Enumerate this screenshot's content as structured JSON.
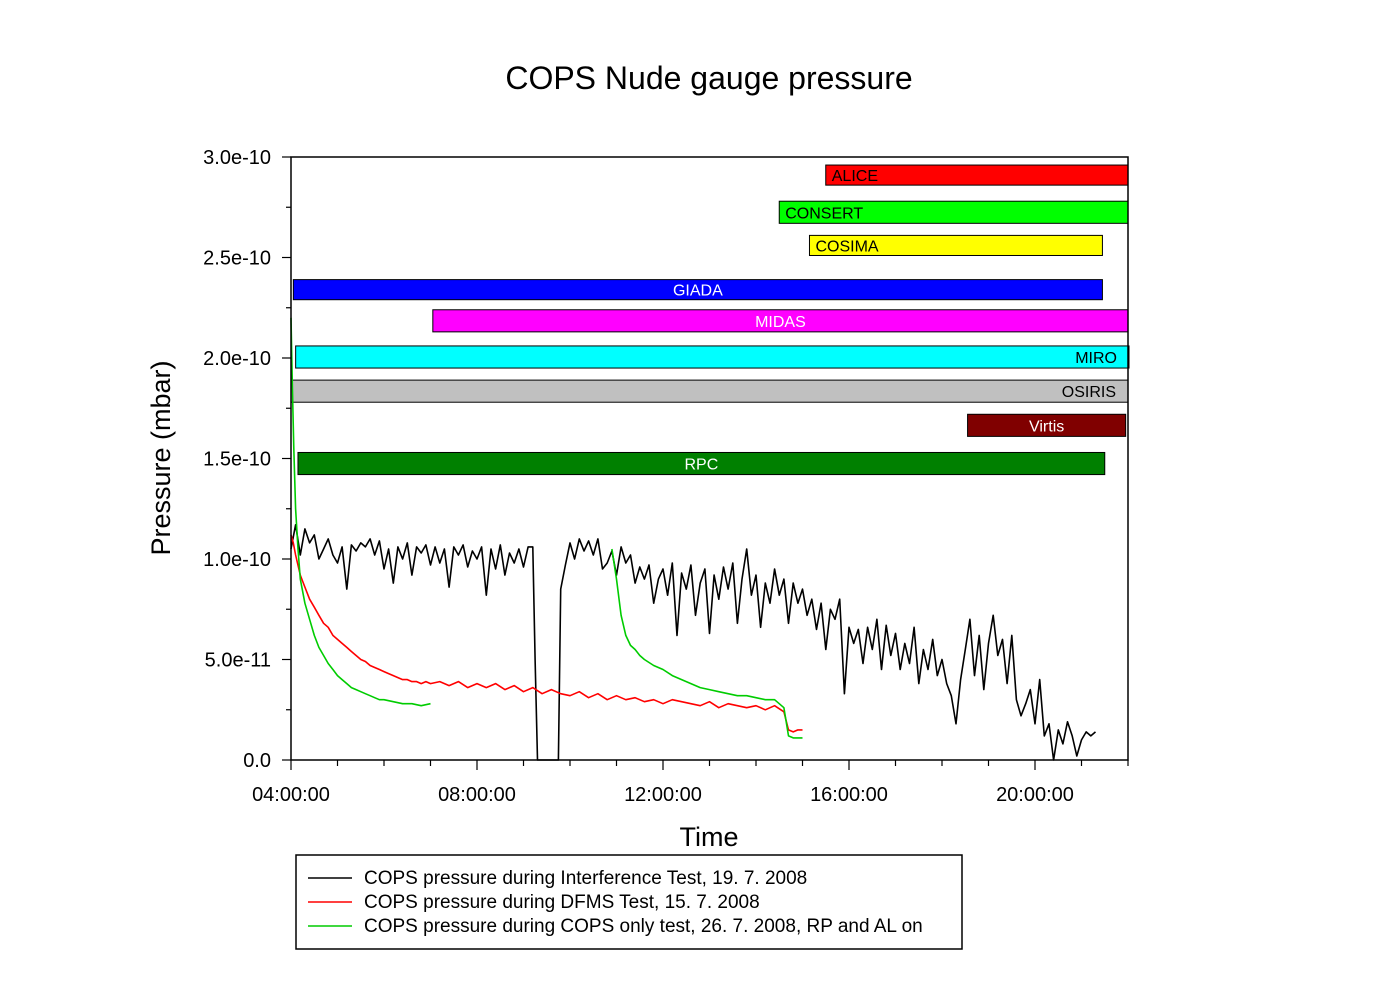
{
  "chart_data": {
    "type": "line",
    "title": "COPS Nude gauge pressure",
    "xlabel": "Time",
    "ylabel": "Pressure (mbar)",
    "x_unit": "hours",
    "xlim": [
      4.0,
      22.0
    ],
    "ylim": [
      0,
      3e-10
    ],
    "x_ticks": [
      {
        "value": 4,
        "label": "04:00:00"
      },
      {
        "value": 8,
        "label": "08:00:00"
      },
      {
        "value": 12,
        "label": "12:00:00"
      },
      {
        "value": 16,
        "label": "16:00:00"
      },
      {
        "value": 20,
        "label": "20:00:00"
      }
    ],
    "y_ticks": [
      {
        "value": 0,
        "label": "0.0"
      },
      {
        "value": 5e-11,
        "label": "5.0e-11"
      },
      {
        "value": 1e-10,
        "label": "1.0e-10"
      },
      {
        "value": 1.5e-10,
        "label": "1.5e-10"
      },
      {
        "value": 2e-10,
        "label": "2.0e-10"
      },
      {
        "value": 2.5e-10,
        "label": "2.5e-10"
      },
      {
        "value": 3e-10,
        "label": "3.0e-10"
      }
    ],
    "grid": false,
    "legend_position": "bottom",
    "instrument_bars": [
      {
        "name": "ALICE",
        "start": 15.5,
        "end": 22.0,
        "y_top": 2.96e-10,
        "y_bottom": 2.86e-10,
        "color": "#ff0000",
        "text_color": "#000000",
        "align": "start"
      },
      {
        "name": "CONSERT",
        "start": 14.5,
        "end": 22.0,
        "y_top": 2.78e-10,
        "y_bottom": 2.67e-10,
        "color": "#00ff00",
        "text_color": "#000000",
        "align": "start"
      },
      {
        "name": "COSIMA",
        "start": 15.15,
        "end": 21.45,
        "y_top": 2.61e-10,
        "y_bottom": 2.51e-10,
        "color": "#ffff00",
        "text_color": "#000000",
        "align": "start"
      },
      {
        "name": "GIADA",
        "start": 4.05,
        "end": 21.45,
        "y_top": 2.39e-10,
        "y_bottom": 2.29e-10,
        "color": "#0000ff",
        "text_color": "#ffffff",
        "align": "middle"
      },
      {
        "name": "MIDAS",
        "start": 7.05,
        "end": 22.0,
        "y_top": 2.24e-10,
        "y_bottom": 2.13e-10,
        "color": "#ff00ff",
        "text_color": "#ffffff",
        "align": "middle"
      },
      {
        "name": "MIRO",
        "start": 4.1,
        "end": 22.05,
        "y_top": 2.06e-10,
        "y_bottom": 1.95e-10,
        "color": "#00ffff",
        "text_color": "#000000",
        "align": "end"
      },
      {
        "name": "OSIRIS",
        "start": 4.0,
        "end": 22.0,
        "y_top": 1.89e-10,
        "y_bottom": 1.78e-10,
        "color": "#c0c0c0",
        "text_color": "#000000",
        "align": "end"
      },
      {
        "name": "Virtis",
        "start": 18.55,
        "end": 21.95,
        "y_top": 1.72e-10,
        "y_bottom": 1.61e-10,
        "color": "#800000",
        "text_color": "#ffffff",
        "align": "middle"
      },
      {
        "name": "RPC",
        "start": 4.15,
        "end": 21.5,
        "y_top": 1.53e-10,
        "y_bottom": 1.42e-10,
        "color": "#008000",
        "text_color": "#ffffff",
        "align": "middle"
      }
    ],
    "series": [
      {
        "name": "COPS pressure during Interference Test, 19. 7. 2008",
        "color": "#000000",
        "x": [
          4.0,
          4.1,
          4.2,
          4.3,
          4.4,
          4.5,
          4.6,
          4.7,
          4.8,
          4.9,
          5.0,
          5.1,
          5.2,
          5.3,
          5.4,
          5.5,
          5.6,
          5.7,
          5.8,
          5.9,
          6.0,
          6.1,
          6.2,
          6.3,
          6.4,
          6.5,
          6.6,
          6.7,
          6.8,
          6.9,
          7.0,
          7.1,
          7.2,
          7.3,
          7.4,
          7.5,
          7.6,
          7.7,
          7.8,
          7.9,
          8.0,
          8.1,
          8.2,
          8.3,
          8.4,
          8.5,
          8.6,
          8.7,
          8.8,
          8.9,
          9.0,
          9.1,
          9.2,
          9.25,
          9.3,
          9.75,
          9.8,
          9.9,
          10.0,
          10.1,
          10.2,
          10.3,
          10.4,
          10.5,
          10.6,
          10.7,
          10.8,
          10.9,
          11.0,
          11.1,
          11.2,
          11.3,
          11.4,
          11.5,
          11.6,
          11.7,
          11.8,
          11.9,
          12.0,
          12.1,
          12.2,
          12.3,
          12.4,
          12.5,
          12.6,
          12.7,
          12.8,
          12.9,
          13.0,
          13.1,
          13.2,
          13.3,
          13.4,
          13.5,
          13.6,
          13.7,
          13.8,
          13.9,
          14.0,
          14.1,
          14.2,
          14.3,
          14.4,
          14.5,
          14.6,
          14.7,
          14.8,
          14.9,
          15.0,
          15.1,
          15.2,
          15.3,
          15.4,
          15.5,
          15.6,
          15.7,
          15.8,
          15.9,
          16.0,
          16.1,
          16.2,
          16.3,
          16.4,
          16.5,
          16.6,
          16.7,
          16.8,
          16.9,
          17.0,
          17.1,
          17.2,
          17.3,
          17.4,
          17.5,
          17.6,
          17.7,
          17.8,
          17.9,
          18.0,
          18.1,
          18.2,
          18.3,
          18.4,
          18.5,
          18.6,
          18.7,
          18.8,
          18.9,
          19.0,
          19.1,
          19.2,
          19.3,
          19.4,
          19.5,
          19.6,
          19.7,
          19.8,
          19.9,
          20.0,
          20.1,
          20.2,
          20.3,
          20.4,
          20.5,
          20.6,
          20.7,
          20.8,
          20.9,
          21.0,
          21.1,
          21.2,
          21.3
        ],
        "y": [
          1.05e-10,
          1.17e-10,
          1.02e-10,
          1.15e-10,
          1.08e-10,
          1.12e-10,
          1e-10,
          1.05e-10,
          1.1e-10,
          1.02e-10,
          9.8e-11,
          1.06e-10,
          8.5e-11,
          1.07e-10,
          1.04e-10,
          1.08e-10,
          1.06e-10,
          1.1e-10,
          1.02e-10,
          1.09e-10,
          9.5e-11,
          1.05e-10,
          8.8e-11,
          1.06e-10,
          1e-10,
          1.08e-10,
          9.2e-11,
          1.06e-10,
          1.03e-10,
          1.07e-10,
          9.7e-11,
          1.06e-10,
          9.8e-11,
          1.05e-10,
          8.6e-11,
          1.06e-10,
          1.02e-10,
          1.07e-10,
          9.6e-11,
          1.04e-10,
          1e-10,
          1.06e-10,
          8.2e-11,
          1.05e-10,
          9.5e-11,
          1.07e-10,
          9.2e-11,
          1.03e-10,
          9.8e-11,
          1.05e-10,
          9.6e-11,
          1.06e-10,
          1.06e-10,
          5e-11,
          0.0,
          0.0,
          8.5e-11,
          9.7e-11,
          1.08e-10,
          1e-10,
          1.1e-10,
          1.04e-10,
          1.09e-10,
          1.02e-10,
          1.1e-10,
          9.5e-11,
          9.8e-11,
          1.04e-10,
          9.2e-11,
          1.06e-10,
          9.8e-11,
          1.02e-10,
          8.8e-11,
          9.6e-11,
          9e-11,
          9.7e-11,
          7.8e-11,
          9e-11,
          9.5e-11,
          8.2e-11,
          9.8e-11,
          6.2e-11,
          9.3e-11,
          8.5e-11,
          9.7e-11,
          7.2e-11,
          8.8e-11,
          9.5e-11,
          6.3e-11,
          9.2e-11,
          8e-11,
          9.6e-11,
          8.5e-11,
          9.8e-11,
          6.8e-11,
          9e-11,
          1.05e-10,
          8.2e-11,
          9.2e-11,
          6.6e-11,
          8.8e-11,
          7.8e-11,
          9.5e-11,
          8.2e-11,
          9e-11,
          6.8e-11,
          8.8e-11,
          7.8e-11,
          8.5e-11,
          7.2e-11,
          8e-11,
          6.5e-11,
          7.8e-11,
          5.5e-11,
          7.5e-11,
          7e-11,
          8e-11,
          3.3e-11,
          6.6e-11,
          5.8e-11,
          6.5e-11,
          4.8e-11,
          6.6e-11,
          5.5e-11,
          7e-11,
          4.5e-11,
          6.7e-11,
          5.2e-11,
          6.3e-11,
          4.5e-11,
          5.8e-11,
          4.8e-11,
          6.6e-11,
          3.8e-11,
          5.5e-11,
          4.5e-11,
          6e-11,
          4.2e-11,
          5e-11,
          3.8e-11,
          3.2e-11,
          1.8e-11,
          4e-11,
          5.5e-11,
          7e-11,
          4.2e-11,
          6.2e-11,
          3.5e-11,
          5.8e-11,
          7.2e-11,
          5.2e-11,
          6e-11,
          3.8e-11,
          6.2e-11,
          3e-11,
          2.2e-11,
          2.8e-11,
          3.5e-11,
          1.8e-11,
          4e-11,
          1.2e-11,
          1.8e-11,
          0.0,
          1.5e-11,
          8e-12,
          1.9e-11,
          1.2e-11,
          2e-12,
          1e-11,
          1.4e-11,
          1.2e-11,
          1.4e-11
        ]
      },
      {
        "name": "COPS pressure during DFMS Test, 15. 7. 2008",
        "color": "#ff0000",
        "x": [
          4.0,
          4.05,
          4.1,
          4.2,
          4.3,
          4.4,
          4.5,
          4.6,
          4.7,
          4.8,
          4.9,
          5.0,
          5.1,
          5.2,
          5.3,
          5.4,
          5.5,
          5.6,
          5.7,
          5.8,
          5.9,
          6.0,
          6.1,
          6.2,
          6.3,
          6.4,
          6.5,
          6.6,
          6.7,
          6.8,
          6.9,
          7.0,
          7.2,
          7.4,
          7.6,
          7.8,
          8.0,
          8.2,
          8.4,
          8.6,
          8.8,
          9.0,
          9.2,
          9.4,
          9.6,
          9.8,
          10.0,
          10.2,
          10.4,
          10.6,
          10.8,
          11.0,
          11.2,
          11.4,
          11.6,
          11.8,
          12.0,
          12.2,
          12.4,
          12.6,
          12.8,
          13.0,
          13.2,
          13.4,
          13.6,
          13.8,
          14.0,
          14.2,
          14.4,
          14.6,
          14.7,
          14.8,
          14.9,
          15.0
        ],
        "y": [
          1.12e-10,
          1.08e-10,
          1.02e-10,
          9.2e-11,
          8.6e-11,
          8e-11,
          7.6e-11,
          7.2e-11,
          6.8e-11,
          6.6e-11,
          6.2e-11,
          6e-11,
          5.8e-11,
          5.6e-11,
          5.4e-11,
          5.2e-11,
          5e-11,
          4.9e-11,
          4.7e-11,
          4.6e-11,
          4.5e-11,
          4.4e-11,
          4.3e-11,
          4.2e-11,
          4.1e-11,
          4e-11,
          4e-11,
          3.9e-11,
          3.9e-11,
          3.8e-11,
          3.9e-11,
          3.8e-11,
          3.9e-11,
          3.7e-11,
          3.9e-11,
          3.6e-11,
          3.8e-11,
          3.6e-11,
          3.8e-11,
          3.5e-11,
          3.7e-11,
          3.4e-11,
          3.6e-11,
          3.3e-11,
          3.5e-11,
          3.3e-11,
          3.2e-11,
          3.4e-11,
          3.1e-11,
          3.3e-11,
          3e-11,
          3.2e-11,
          3e-11,
          3.1e-11,
          2.9e-11,
          3e-11,
          2.8e-11,
          3e-11,
          2.9e-11,
          2.8e-11,
          2.7e-11,
          2.9e-11,
          2.6e-11,
          2.8e-11,
          2.7e-11,
          2.6e-11,
          2.7e-11,
          2.5e-11,
          2.7e-11,
          2.4e-11,
          1.5e-11,
          1.4e-11,
          1.5e-11,
          1.5e-11
        ]
      },
      {
        "name": "COPS pressure during COPS only test, 26. 7. 2008, RP and AL on",
        "color": "#00cc00",
        "x": [
          4.0,
          4.03,
          4.06,
          4.1,
          4.15,
          4.2,
          4.3,
          4.4,
          4.5,
          4.6,
          4.7,
          4.8,
          4.9,
          5.0,
          5.1,
          5.2,
          5.3,
          5.4,
          5.5,
          5.6,
          5.7,
          5.8,
          5.9,
          6.0,
          6.2,
          6.4,
          6.6,
          6.8,
          7.0,
          7.05,
          10.9,
          11.0,
          11.1,
          11.2,
          11.3,
          11.4,
          11.5,
          11.6,
          11.8,
          12.0,
          12.2,
          12.4,
          12.6,
          12.8,
          13.0,
          13.2,
          13.4,
          13.6,
          13.8,
          14.0,
          14.2,
          14.4,
          14.6,
          14.7,
          14.8,
          14.9,
          15.0
        ],
        "y": [
          2.2e-10,
          1.85e-10,
          1.55e-10,
          1.25e-10,
          1.05e-10,
          9e-11,
          7.8e-11,
          7e-11,
          6.2e-11,
          5.6e-11,
          5.2e-11,
          4.8e-11,
          4.5e-11,
          4.2e-11,
          4e-11,
          3.8e-11,
          3.6e-11,
          3.5e-11,
          3.4e-11,
          3.3e-11,
          3.2e-11,
          3.1e-11,
          3e-11,
          3e-11,
          2.9e-11,
          2.8e-11,
          2.8e-11,
          2.7e-11,
          2.8e-11,
          null,
          1.05e-10,
          9e-11,
          7.2e-11,
          6.2e-11,
          5.7e-11,
          5.5e-11,
          5.2e-11,
          5e-11,
          4.7e-11,
          4.5e-11,
          4.2e-11,
          4e-11,
          3.8e-11,
          3.6e-11,
          3.5e-11,
          3.4e-11,
          3.3e-11,
          3.2e-11,
          3.2e-11,
          3.1e-11,
          3e-11,
          3e-11,
          2.6e-11,
          1.2e-11,
          1.1e-11,
          1.1e-11,
          1.1e-11
        ]
      }
    ]
  }
}
